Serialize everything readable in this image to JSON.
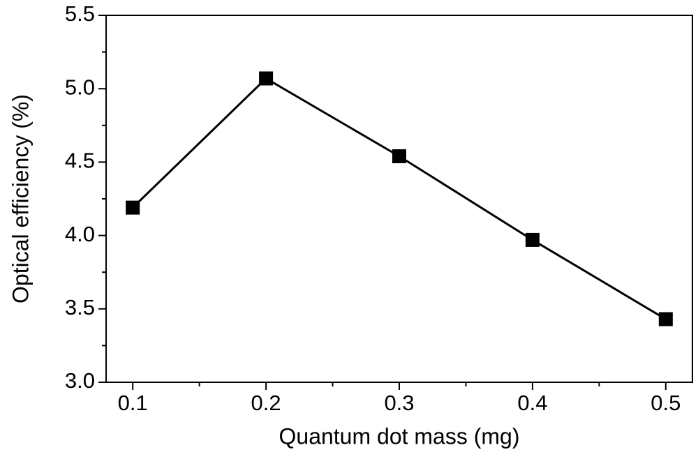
{
  "chart_data": {
    "type": "line",
    "x_label": "Quantum dot mass (mg)",
    "y_label": "Optical efficiency (%)",
    "x": [
      0.1,
      0.2,
      0.3,
      0.4,
      0.5
    ],
    "series": [
      {
        "color": "#000000",
        "values": [
          4.19,
          5.07,
          4.54,
          3.97,
          3.43
        ]
      }
    ],
    "xlim": [
      0.08,
      0.52
    ],
    "ylim": [
      3.0,
      5.5
    ],
    "xticks": [
      0.1,
      0.2,
      0.3,
      0.4,
      0.5
    ],
    "xminorticks": [
      0.15,
      0.25,
      0.35,
      0.45
    ],
    "yticks": [
      {
        "value": 3,
        "label": "3.0"
      },
      3.5,
      {
        "value": 4,
        "label": "4.0"
      },
      4.5,
      {
        "value": 5,
        "label": "5.0"
      },
      5.5
    ],
    "yminorticks": [
      3.25,
      3.75,
      4.25,
      4.75,
      5.25
    ],
    "marker": "square",
    "grid": false
  }
}
